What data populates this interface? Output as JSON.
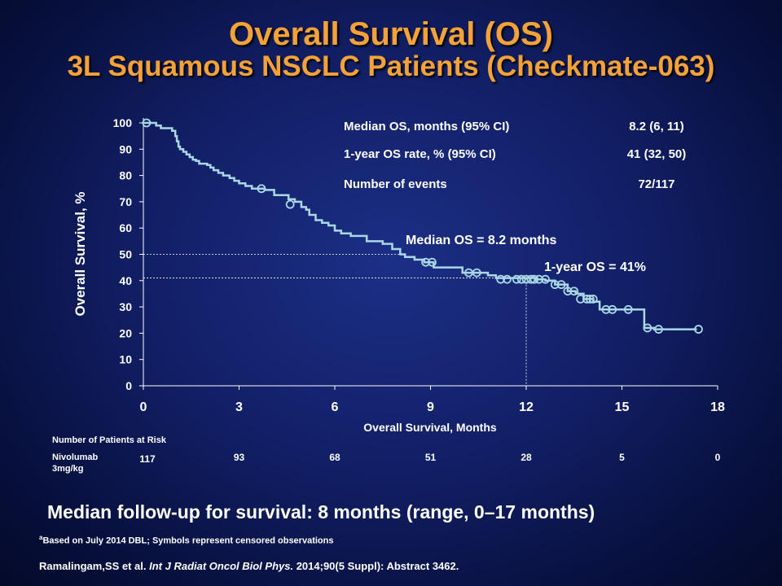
{
  "title": {
    "line1": "Overall Survival (OS)",
    "line2": "3L Squamous NSCLC Patients (Checkmate-063)"
  },
  "stats_table": {
    "rows": [
      {
        "label": "Median OS, months (95% CI)",
        "value": "8.2 (6, 11)"
      },
      {
        "label": "1-year OS rate, % (95% CI)",
        "value": "41 (32, 50)"
      },
      {
        "label": "Number of events",
        "value": "72/117"
      }
    ]
  },
  "annotations": {
    "median": "Median OS = 8.2 months",
    "one_year": "1-year OS = 41%"
  },
  "chart_data": {
    "type": "line",
    "step": true,
    "xlabel": "Overall Survival, Months",
    "ylabel": "Overall Survival, %",
    "xlim": [
      0,
      18
    ],
    "ylim": [
      0,
      100
    ],
    "x_ticks": [
      0,
      3,
      6,
      9,
      12,
      15,
      18
    ],
    "y_ticks": [
      0,
      10,
      20,
      30,
      40,
      50,
      60,
      70,
      80,
      90,
      100
    ],
    "grid": false,
    "line_color": "#a9d7e6",
    "series": [
      {
        "x": [
          0,
          0.4,
          0.55,
          0.9,
          1.0,
          1.05,
          1.1,
          1.15,
          1.25,
          1.35,
          1.45,
          1.55,
          1.65,
          1.75,
          2.0,
          2.1,
          2.2,
          2.35,
          2.5,
          2.7,
          2.85,
          3.0,
          3.2,
          3.4,
          3.8,
          4.1,
          4.55,
          4.75,
          4.95,
          5.1,
          5.2,
          5.4,
          5.6,
          5.8,
          6.0,
          6.2,
          6.5,
          7.0,
          7.5,
          7.8,
          8.05,
          8.2,
          8.5,
          8.8,
          9.1,
          10.0,
          10.8,
          11.05,
          11.9,
          12.3,
          12.6,
          12.9,
          13.3,
          13.55,
          13.8,
          14.1,
          14.3,
          15.0,
          15.7,
          16.0,
          17.35
        ],
        "y": [
          100,
          99,
          98,
          97,
          95,
          93,
          91,
          90,
          89,
          88,
          87,
          86,
          85.5,
          84.5,
          84,
          83,
          82,
          81,
          80,
          79,
          78,
          77,
          76,
          75,
          74.5,
          72.5,
          71,
          70,
          68,
          67,
          65,
          63,
          62,
          61,
          59,
          58,
          57,
          55,
          54,
          52,
          50,
          49,
          48,
          47,
          45,
          43,
          42,
          41,
          41,
          40.5,
          40,
          38.5,
          36,
          35,
          33,
          32,
          29,
          29,
          22,
          21.5,
          21.5
        ]
      }
    ],
    "censored": {
      "x": [
        0.1,
        3.7,
        4.6,
        8.85,
        9.05,
        10.2,
        10.45,
        11.2,
        11.4,
        11.7,
        11.85,
        12.0,
        12.15,
        12.25,
        12.4,
        12.6,
        12.9,
        13.1,
        13.3,
        13.5,
        13.7,
        13.9,
        14.0,
        14.1,
        14.5,
        14.7,
        15.2,
        15.8,
        16.15,
        17.4
      ],
      "y": [
        100,
        75,
        69,
        47,
        47,
        43,
        43,
        40.5,
        40.5,
        40.5,
        40.5,
        40.5,
        40.5,
        40.5,
        40.5,
        40.5,
        38.5,
        38.5,
        36,
        36,
        33,
        33,
        33,
        33,
        29,
        29,
        29,
        22,
        21.5,
        21.5
      ]
    },
    "reference_lines": {
      "median": {
        "x": 8.2,
        "y": 50
      },
      "one_year": {
        "x": 12,
        "y": 41
      }
    }
  },
  "at_risk": {
    "header": "Number of Patients at Risk",
    "arm_line1": "Nivolumab",
    "arm_line2": "3mg/kg",
    "values": [
      "117",
      "93",
      "68",
      "51",
      "28",
      "5",
      "0"
    ]
  },
  "followup": "Median follow-up for survival: 8 months (range, 0–17 months)",
  "footnote": {
    "sup": "a",
    "text": "Based on July 2014 DBL;   Symbols represent censored observations"
  },
  "reference": {
    "authors": "Ramalingam,SS et al. ",
    "journal": "Int  J Radiat Oncol Biol Phys.",
    "rest": " 2014;90(5 Suppl): Abstract 3462."
  }
}
